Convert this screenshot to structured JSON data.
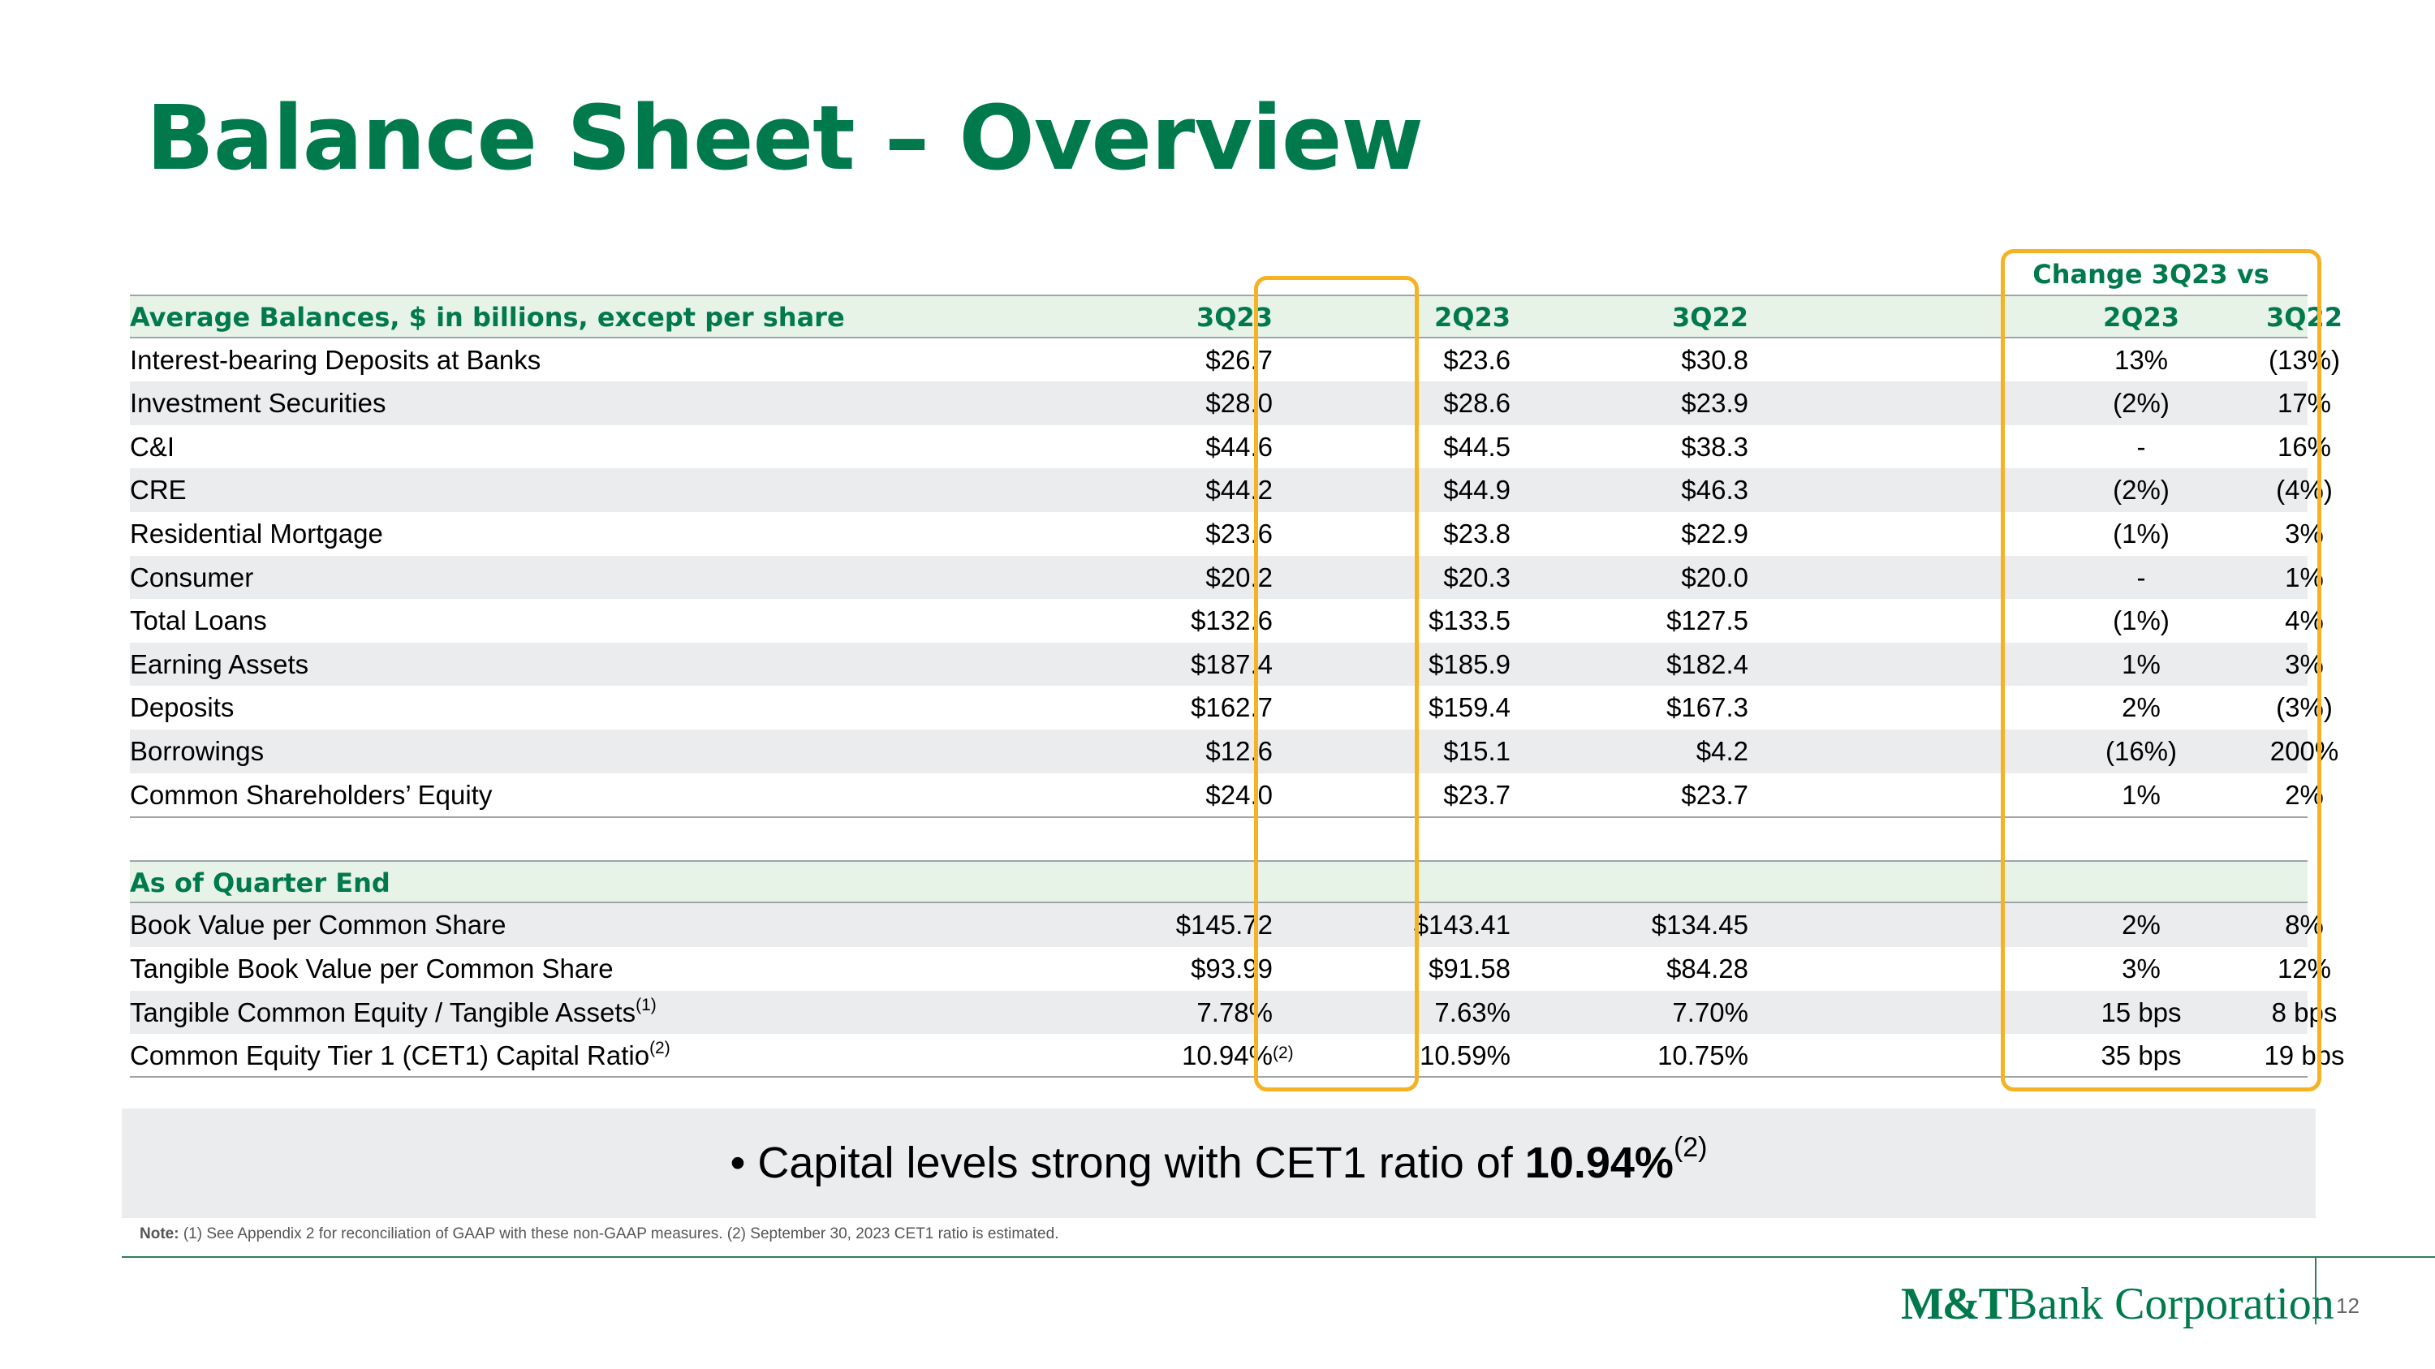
{
  "title": "Balance Sheet – Overview",
  "change_header": "Change 3Q23 vs",
  "average_section": {
    "label": "Average Balances, $ in billions, except per share",
    "columns": [
      "3Q23",
      "2Q23",
      "3Q22",
      "2Q23",
      "3Q22"
    ],
    "rows": [
      {
        "label": "Interest-bearing Deposits at Banks",
        "v": [
          "$26.7",
          "$23.6",
          "$30.8",
          "13%",
          "(13%)"
        ]
      },
      {
        "label": "Investment Securities",
        "v": [
          "$28.0",
          "$28.6",
          "$23.9",
          "(2%)",
          "17%"
        ]
      },
      {
        "label": "C&I",
        "v": [
          "$44.6",
          "$44.5",
          "$38.3",
          "-",
          "16%"
        ]
      },
      {
        "label": "CRE",
        "v": [
          "$44.2",
          "$44.9",
          "$46.3",
          "(2%)",
          "(4%)"
        ]
      },
      {
        "label": "Residential Mortgage",
        "v": [
          "$23.6",
          "$23.8",
          "$22.9",
          "(1%)",
          "3%"
        ]
      },
      {
        "label": "Consumer",
        "v": [
          "$20.2",
          "$20.3",
          "$20.0",
          "-",
          "1%"
        ]
      },
      {
        "label": "Total Loans",
        "v": [
          "$132.6",
          "$133.5",
          "$127.5",
          "(1%)",
          "4%"
        ]
      },
      {
        "label": "Earning Assets",
        "v": [
          "$187.4",
          "$185.9",
          "$182.4",
          "1%",
          "3%"
        ]
      },
      {
        "label": "Deposits",
        "v": [
          "$162.7",
          "$159.4",
          "$167.3",
          "2%",
          "(3%)"
        ]
      },
      {
        "label": "Borrowings",
        "v": [
          "$12.6",
          "$15.1",
          "$4.2",
          "(16%)",
          "200%"
        ]
      },
      {
        "label": "Common Shareholders’ Equity",
        "v": [
          "$24.0",
          "$23.7",
          "$23.7",
          "1%",
          "2%"
        ]
      }
    ]
  },
  "quarter_end_section": {
    "label": "As of Quarter End",
    "rows": [
      {
        "label": "Book Value per Common Share",
        "v": [
          "$145.72",
          "$143.41",
          "$134.45",
          "2%",
          "8%"
        ]
      },
      {
        "label": "Tangible Book Value per Common Share",
        "v": [
          "$93.99",
          "$91.58",
          "$84.28",
          "3%",
          "12%"
        ]
      },
      {
        "label": "Tangible Common Equity / Tangible Assets",
        "sup": "(1)",
        "v": [
          "7.78%",
          "7.63%",
          "7.70%",
          "15 bps",
          "8 bps"
        ]
      },
      {
        "label": "Common Equity Tier 1 (CET1) Capital Ratio",
        "sup": "(2)",
        "v": [
          "10.94%",
          "10.59%",
          "10.75%",
          "35 bps",
          "19 bps"
        ],
        "v0_sup": "(2)"
      }
    ]
  },
  "callout": {
    "bullet": "•",
    "text": "Capital levels strong with CET1 ratio of ",
    "value": "10.94%",
    "sup": "(2)"
  },
  "note": {
    "label": "Note:",
    "text": " (1) See Appendix 2 for reconciliation of GAAP with these non-GAAP measures. (2) September 30, 2023 CET1 ratio is estimated."
  },
  "logo": {
    "brand": "M&T",
    "rest": "Bank Corporation"
  },
  "page_number": "12",
  "colors": {
    "brand_green": "#007a4d",
    "highlight": "#f5b324",
    "row_shade": "#ebecee",
    "header_fill": "#e8f3e8"
  }
}
